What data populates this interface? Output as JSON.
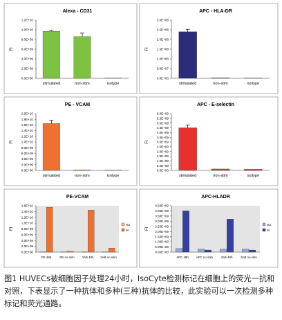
{
  "chart_data": [
    {
      "type": "bar",
      "title": "Alexa - CD31",
      "ylabel": "FI",
      "categories": [
        "stimulated",
        "non-stim",
        "isotype"
      ],
      "series": [
        {
          "color": "#7dc242",
          "values": [
            9700000000.0,
            8600000000.0,
            50000000.0
          ],
          "errors": [
            200000000.0,
            700000000.0,
            0
          ]
        }
      ],
      "ylim": [
        0,
        12000000000.0
      ],
      "yticks": [
        {
          "value": 0,
          "label": "0.0E+00"
        },
        {
          "value": 2000000000.0,
          "label": "2.0E+09"
        },
        {
          "value": 4000000000.0,
          "label": "4.0E+09"
        },
        {
          "value": 6000000000.0,
          "label": "6.0E+09"
        },
        {
          "value": 8000000000.0,
          "label": "8.0E+09"
        },
        {
          "value": 10000000000.0,
          "label": "1.0E+10"
        },
        {
          "value": 12000000000.0,
          "label": "1.2E+10"
        }
      ]
    },
    {
      "type": "bar",
      "title": "APC -  HLA-DR",
      "ylabel": "FI",
      "categories": [
        "stimulated",
        "non-stim",
        "isotype"
      ],
      "series": [
        {
          "color": "#2b2d7a",
          "values": [
            240000000.0,
            2000000.0,
            1000000.0
          ],
          "errors": [
            12000000.0,
            0,
            0
          ]
        }
      ],
      "ylim": [
        0,
        300000000.0
      ],
      "yticks": [
        {
          "value": 0,
          "label": "0.0E+00"
        },
        {
          "value": 50000000.0,
          "label": "5.0E+07"
        },
        {
          "value": 100000000.0,
          "label": "1.0E+08"
        },
        {
          "value": 150000000.0,
          "label": "1.5E+08"
        },
        {
          "value": 200000000.0,
          "label": "2.0E+08"
        },
        {
          "value": 250000000.0,
          "label": "2.5E+08"
        },
        {
          "value": 300000000.0,
          "label": "3.0E+08"
        }
      ]
    },
    {
      "type": "bar",
      "title": "PE - VCAM",
      "ylabel": "FI",
      "categories": [
        "stimulated",
        "non-stim",
        "isotype"
      ],
      "series": [
        {
          "color": "#f07030",
          "values": [
            16500000000.0,
            200000000.0,
            100000000.0
          ],
          "errors": [
            1200000000.0,
            0,
            0
          ]
        }
      ],
      "ylim": [
        0,
        20000000000.0
      ],
      "yticks": [
        {
          "value": 0,
          "label": "0.0E+00"
        },
        {
          "value": 2000000000.0,
          "label": "2.0E+09"
        },
        {
          "value": 4000000000.0,
          "label": "4.0E+09"
        },
        {
          "value": 6000000000.0,
          "label": "6.0E+09"
        },
        {
          "value": 8000000000.0,
          "label": "8.0E+09"
        },
        {
          "value": 10000000000.0,
          "label": "1.0E+10"
        },
        {
          "value": 12000000000.0,
          "label": "1.2E+10"
        },
        {
          "value": 14000000000.0,
          "label": "1.4E+10"
        },
        {
          "value": 16000000000.0,
          "label": "1.6E+10"
        },
        {
          "value": 18000000000.0,
          "label": "1.8E+10"
        },
        {
          "value": 20000000000.0,
          "label": "2.0E+10"
        }
      ]
    },
    {
      "type": "bar",
      "title": "APC - E-selectin",
      "ylabel": "FI",
      "categories": [
        "stimulated",
        "non-stim",
        "isotype"
      ],
      "series": [
        {
          "color": "#e83030",
          "values": [
            4500000000.0,
            150000000.0,
            120000000.0
          ],
          "errors": [
            300000000.0,
            0,
            0
          ]
        }
      ],
      "ylim": [
        0,
        6000000000.0
      ],
      "yticks": [
        {
          "value": 0,
          "label": "0.0E+00"
        },
        {
          "value": 500000000.0,
          "label": "5.0E+08"
        },
        {
          "value": 1000000000.0,
          "label": "1.0E+09"
        },
        {
          "value": 1500000000.0,
          "label": "1.5E+09"
        },
        {
          "value": 2000000000.0,
          "label": "2.0E+09"
        },
        {
          "value": 2500000000.0,
          "label": "2.5E+09"
        },
        {
          "value": 3000000000.0,
          "label": "3.0E+09"
        },
        {
          "value": 3500000000.0,
          "label": "3.5E+09"
        },
        {
          "value": 4000000000.0,
          "label": "4.0E+09"
        },
        {
          "value": 4500000000.0,
          "label": "4.5E+09"
        },
        {
          "value": 5000000000.0,
          "label": "5.0E+09"
        },
        {
          "value": 5500000000.0,
          "label": "5.5E+09"
        },
        {
          "value": 6000000000.0,
          "label": "6.0E+09"
        }
      ]
    },
    {
      "type": "bar",
      "title": "PE-VCAM",
      "ylabel": "FI",
      "categories": [
        "PE 48h",
        "PE no stim",
        "3AB 48h",
        "3AB no stim"
      ],
      "series": [
        {
          "name": "Iso",
          "color": "#f4b08a",
          "values": [
            50000000.0,
            50000000.0,
            50000000.0,
            50000000.0
          ]
        },
        {
          "name": "M",
          "color": "#f07030",
          "values": [
            15500000000.0,
            300000000.0,
            14500000000.0,
            1400000000.0
          ]
        }
      ],
      "ylim": [
        0,
        16000000000.0
      ],
      "yticks": [
        {
          "value": 0,
          "label": "0.0E+00"
        },
        {
          "value": 2000000000.0,
          "label": "2.0E+09"
        },
        {
          "value": 4000000000.0,
          "label": "4.0E+09"
        },
        {
          "value": 6000000000.0,
          "label": "6.0E+09"
        },
        {
          "value": 8000000000.0,
          "label": "8.0E+09"
        },
        {
          "value": 10000000000.0,
          "label": "1.0E+10"
        },
        {
          "value": 12000000000.0,
          "label": "1.2E+10"
        },
        {
          "value": 14000000000.0,
          "label": "1.4E+10"
        },
        {
          "value": 16000000000.0,
          "label": "1.6E+10"
        }
      ],
      "legend": "right",
      "plot_background": "#e4e4e4"
    },
    {
      "type": "bar",
      "title": "APC-HLADR",
      "ylabel": "FI",
      "categories": [
        "APC 48h",
        "APC no stim",
        "3AB 48h",
        "3AB no stim"
      ],
      "series": [
        {
          "name": "Iso",
          "color": "#8fa8d8",
          "values": [
            350000000.0,
            300000000.0,
            300000000.0,
            300000000.0
          ]
        },
        {
          "name": "M",
          "color": "#3540a0",
          "values": [
            4000000000.0,
            200000000.0,
            3200000000.0,
            200000000.0
          ]
        }
      ],
      "ylim": [
        0,
        4500000000.0
      ],
      "yticks": [
        {
          "value": 0,
          "label": "0.00E+00"
        },
        {
          "value": 500000000.0,
          "label": "5.00E+08"
        },
        {
          "value": 1000000000.0,
          "label": "1.00E+09"
        },
        {
          "value": 1500000000.0,
          "label": "1.50E+09"
        },
        {
          "value": 2000000000.0,
          "label": "2.00E+09"
        },
        {
          "value": 2500000000.0,
          "label": "2.50E+09"
        },
        {
          "value": 3000000000.0,
          "label": "3.00E+09"
        },
        {
          "value": 3500000000.0,
          "label": "3.50E+09"
        },
        {
          "value": 4000000000.0,
          "label": "4.00E+09"
        },
        {
          "value": 4500000000.0,
          "label": "4.50E+09"
        }
      ],
      "legend": "right",
      "plot_background": "#e4e4e4"
    }
  ],
  "caption": "图1 HUVECs被细胞因子处理24小时，IsoCyte检测标记在细胞上的荧光一抗和对照，下表显示了一种抗体和多种(三种)抗体的比较，此实验可以一次检测多种标记和荧光通路。"
}
